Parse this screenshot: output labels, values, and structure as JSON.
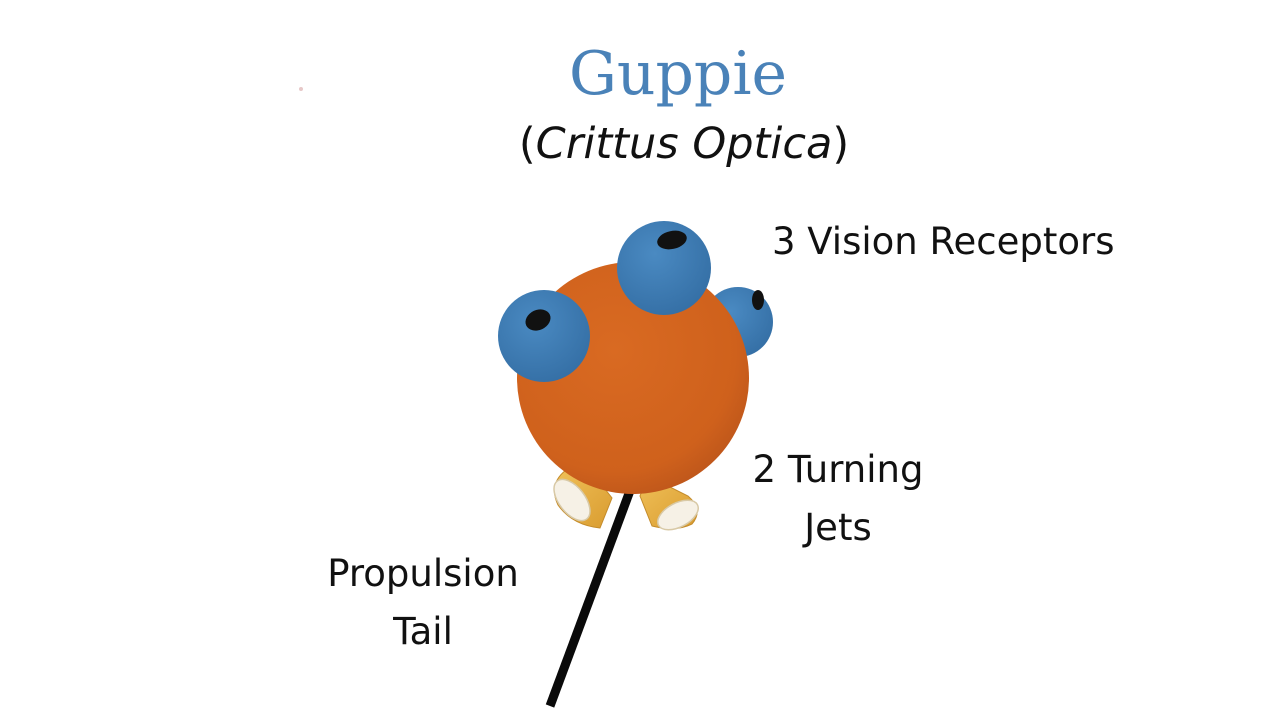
{
  "slide": {
    "title": "Guppie",
    "subtitle_open": "(",
    "subtitle_species": "Crittus Optica",
    "subtitle_close": ")"
  },
  "labels": {
    "vision_receptors": "3 Vision Receptors",
    "turning_jets": [
      "2 Turning",
      "Jets"
    ],
    "propulsion_tail": [
      "Propulsion",
      "Tail"
    ]
  },
  "colors": {
    "title": "#4a82b8",
    "body": "#d2641e",
    "eye": "#3f7db6",
    "jet": "#e7b345",
    "tail": "#0a0a0a"
  }
}
